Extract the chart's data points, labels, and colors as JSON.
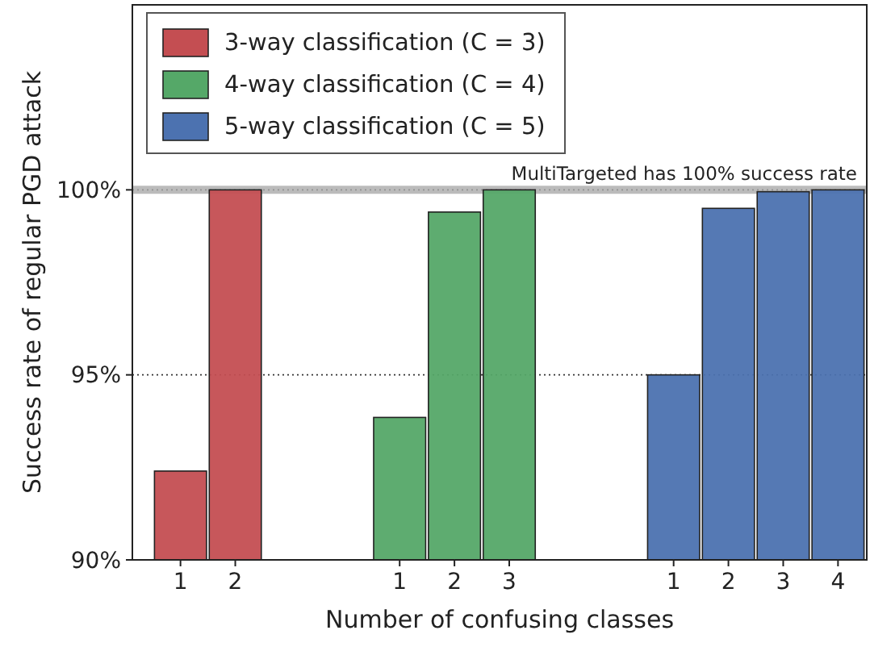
{
  "chart_data": {
    "type": "bar",
    "xlabel": "Number of confusing classes",
    "ylabel": "Success rate of regular PGD attack",
    "categories": [
      "1",
      "2",
      null,
      null,
      "1",
      "2",
      "3",
      null,
      null,
      "1",
      "2",
      "3",
      "4"
    ],
    "series": [
      {
        "name": "3-way classification (C = 3)",
        "color": "#c44e52",
        "values": [
          92.4,
          100,
          null,
          null,
          null,
          null,
          null,
          null,
          null,
          null,
          null,
          null,
          null
        ]
      },
      {
        "name": "4-way classification (C = 4)",
        "color": "#55a868",
        "values": [
          null,
          null,
          null,
          null,
          93.85,
          99.4,
          100,
          null,
          null,
          null,
          null,
          null,
          null
        ]
      },
      {
        "name": "5-way classification (C = 5)",
        "color": "#4c72b0",
        "values": [
          null,
          null,
          null,
          null,
          null,
          null,
          null,
          null,
          null,
          95.0,
          99.5,
          99.95,
          100
        ]
      }
    ],
    "ylim": [
      90,
      105
    ],
    "yticks": [
      {
        "value": 90,
        "label": "90%"
      },
      {
        "value": 95,
        "label": "95%"
      },
      {
        "value": 100,
        "label": "100%"
      }
    ],
    "grid": "y",
    "legend": "top left",
    "ref_lines": [
      {
        "axis": "y",
        "value": 100,
        "label": "MultiTargeted has 100% success rate",
        "color": "#aaaaaa"
      }
    ]
  }
}
